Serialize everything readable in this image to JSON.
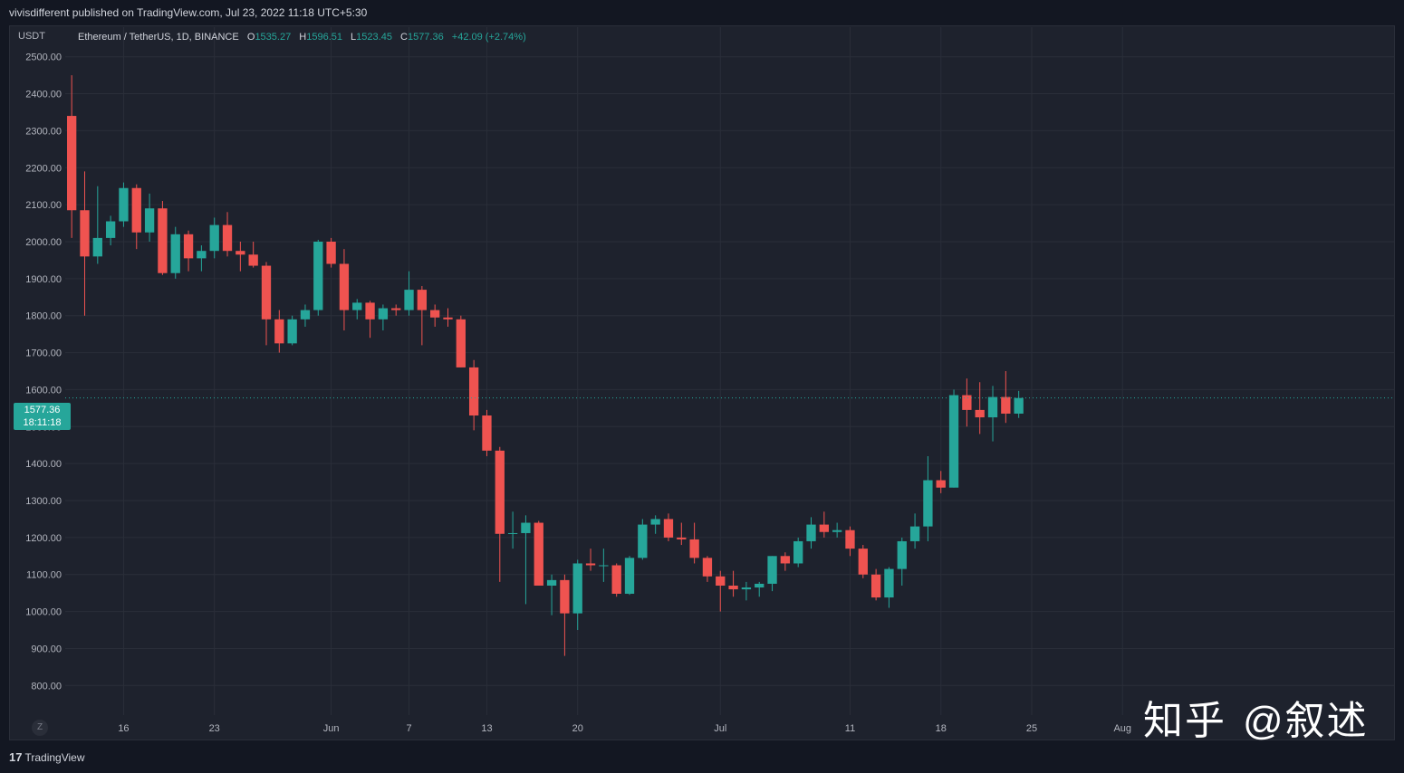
{
  "header": {
    "published_line": "vivisdifferent published on TradingView.com, Jul 23, 2022 11:18 UTC+5:30"
  },
  "legend": {
    "currency": "USDT",
    "symbol": "Ethereum / TetherUS, 1D, BINANCE",
    "o_label": "O",
    "o_value": "1535.27",
    "h_label": "H",
    "h_value": "1596.51",
    "l_label": "L",
    "l_value": "1523.45",
    "c_label": "C",
    "c_value": "1577.36",
    "change": "+42.09 (+2.74%)"
  },
  "price_tag": {
    "price": "1577.36",
    "countdown": "18:11:18"
  },
  "controls": {
    "z_label": "Z"
  },
  "footer": {
    "logo_mark": "17",
    "logo_text": "TradingView"
  },
  "watermark": {
    "zh": "知乎",
    "handle": "@叙述"
  },
  "colors": {
    "up": "#26a69a",
    "down": "#ef5350",
    "grid": "#2a2e39",
    "text": "#b2b5be"
  },
  "chart_data": {
    "type": "candlestick",
    "ylim": [
      720,
      2580
    ],
    "y_ticks": [
      800,
      900,
      1000,
      1100,
      1200,
      1300,
      1400,
      1500,
      1600,
      1700,
      1800,
      1900,
      2000,
      2100,
      2200,
      2300,
      2400,
      2500
    ],
    "y_tick_labels": [
      "800.00",
      "900.00",
      "1000.00",
      "1100.00",
      "1200.00",
      "1300.00",
      "1400.00",
      "1500.00",
      "1600.00",
      "1700.00",
      "1800.00",
      "1900.00",
      "2000.00",
      "2100.00",
      "2200.00",
      "2300.00",
      "2400.00",
      "2500.00"
    ],
    "x_ticks": [
      {
        "day": 4,
        "label": "16"
      },
      {
        "day": 11,
        "label": "23"
      },
      {
        "day": 20,
        "label": "Jun"
      },
      {
        "day": 26,
        "label": "7"
      },
      {
        "day": 32,
        "label": "13"
      },
      {
        "day": 39,
        "label": "20"
      },
      {
        "day": 50,
        "label": "Jul"
      },
      {
        "day": 60,
        "label": "11"
      },
      {
        "day": 67,
        "label": "18"
      },
      {
        "day": 74,
        "label": "25"
      },
      {
        "day": 81,
        "label": "Aug"
      }
    ],
    "x_range": [
      -0.5,
      102
    ],
    "current_price": 1577.36,
    "candles": [
      [
        2340,
        2450,
        2010,
        2085
      ],
      [
        2085,
        2190,
        1800,
        1960
      ],
      [
        1960,
        2150,
        1940,
        2010
      ],
      [
        2010,
        2070,
        1990,
        2055
      ],
      [
        2055,
        2160,
        2040,
        2145
      ],
      [
        2145,
        2155,
        1980,
        2025
      ],
      [
        2025,
        2130,
        2000,
        2090
      ],
      [
        2090,
        2110,
        1910,
        1915
      ],
      [
        1915,
        2040,
        1900,
        2020
      ],
      [
        2020,
        2030,
        1920,
        1955
      ],
      [
        1955,
        1990,
        1920,
        1975
      ],
      [
        1975,
        2065,
        1955,
        2045
      ],
      [
        2045,
        2080,
        1960,
        1975
      ],
      [
        1975,
        2000,
        1920,
        1965
      ],
      [
        1965,
        2000,
        1930,
        1935
      ],
      [
        1935,
        1945,
        1720,
        1790
      ],
      [
        1790,
        1815,
        1700,
        1725
      ],
      [
        1725,
        1800,
        1720,
        1790
      ],
      [
        1790,
        1830,
        1770,
        1815
      ],
      [
        1815,
        2005,
        1800,
        2000
      ],
      [
        2000,
        2010,
        1930,
        1940
      ],
      [
        1940,
        1980,
        1760,
        1815
      ],
      [
        1815,
        1845,
        1790,
        1835
      ],
      [
        1835,
        1840,
        1740,
        1790
      ],
      [
        1790,
        1830,
        1760,
        1820
      ],
      [
        1820,
        1830,
        1800,
        1815
      ],
      [
        1815,
        1920,
        1800,
        1870
      ],
      [
        1870,
        1880,
        1720,
        1815
      ],
      [
        1815,
        1830,
        1770,
        1795
      ],
      [
        1795,
        1820,
        1770,
        1790
      ],
      [
        1790,
        1800,
        1660,
        1660
      ],
      [
        1660,
        1680,
        1490,
        1530
      ],
      [
        1530,
        1545,
        1420,
        1435
      ],
      [
        1435,
        1445,
        1080,
        1210
      ],
      [
        1210,
        1270,
        1170,
        1212
      ],
      [
        1212,
        1260,
        1020,
        1240
      ],
      [
        1240,
        1245,
        1070,
        1070
      ],
      [
        1070,
        1100,
        990,
        1085
      ],
      [
        1085,
        1100,
        880,
        995
      ],
      [
        995,
        1140,
        950,
        1130
      ],
      [
        1130,
        1170,
        1110,
        1125
      ],
      [
        1125,
        1170,
        1080,
        1125
      ],
      [
        1125,
        1130,
        1040,
        1048
      ],
      [
        1048,
        1150,
        1045,
        1145
      ],
      [
        1145,
        1250,
        1140,
        1235
      ],
      [
        1235,
        1260,
        1210,
        1250
      ],
      [
        1250,
        1265,
        1190,
        1200
      ],
      [
        1200,
        1240,
        1180,
        1195
      ],
      [
        1195,
        1240,
        1130,
        1145
      ],
      [
        1145,
        1150,
        1080,
        1095
      ],
      [
        1095,
        1110,
        1000,
        1070
      ],
      [
        1070,
        1110,
        1040,
        1060
      ],
      [
        1060,
        1080,
        1030,
        1065
      ],
      [
        1065,
        1080,
        1040,
        1075
      ],
      [
        1075,
        1150,
        1055,
        1150
      ],
      [
        1150,
        1160,
        1110,
        1130
      ],
      [
        1130,
        1200,
        1120,
        1190
      ],
      [
        1190,
        1255,
        1170,
        1235
      ],
      [
        1235,
        1270,
        1200,
        1215
      ],
      [
        1215,
        1240,
        1200,
        1220
      ],
      [
        1220,
        1230,
        1150,
        1170
      ],
      [
        1170,
        1180,
        1090,
        1100
      ],
      [
        1100,
        1115,
        1030,
        1038
      ],
      [
        1038,
        1120,
        1010,
        1115
      ],
      [
        1115,
        1200,
        1070,
        1190
      ],
      [
        1190,
        1265,
        1170,
        1230
      ],
      [
        1230,
        1420,
        1190,
        1355
      ],
      [
        1355,
        1380,
        1320,
        1335
      ],
      [
        1335,
        1600,
        1335,
        1585
      ],
      [
        1585,
        1630,
        1500,
        1545
      ],
      [
        1545,
        1620,
        1480,
        1525
      ],
      [
        1525,
        1610,
        1460,
        1580
      ],
      [
        1580,
        1650,
        1510,
        1535
      ],
      [
        1535,
        1596.51,
        1523.45,
        1577.36
      ]
    ]
  }
}
